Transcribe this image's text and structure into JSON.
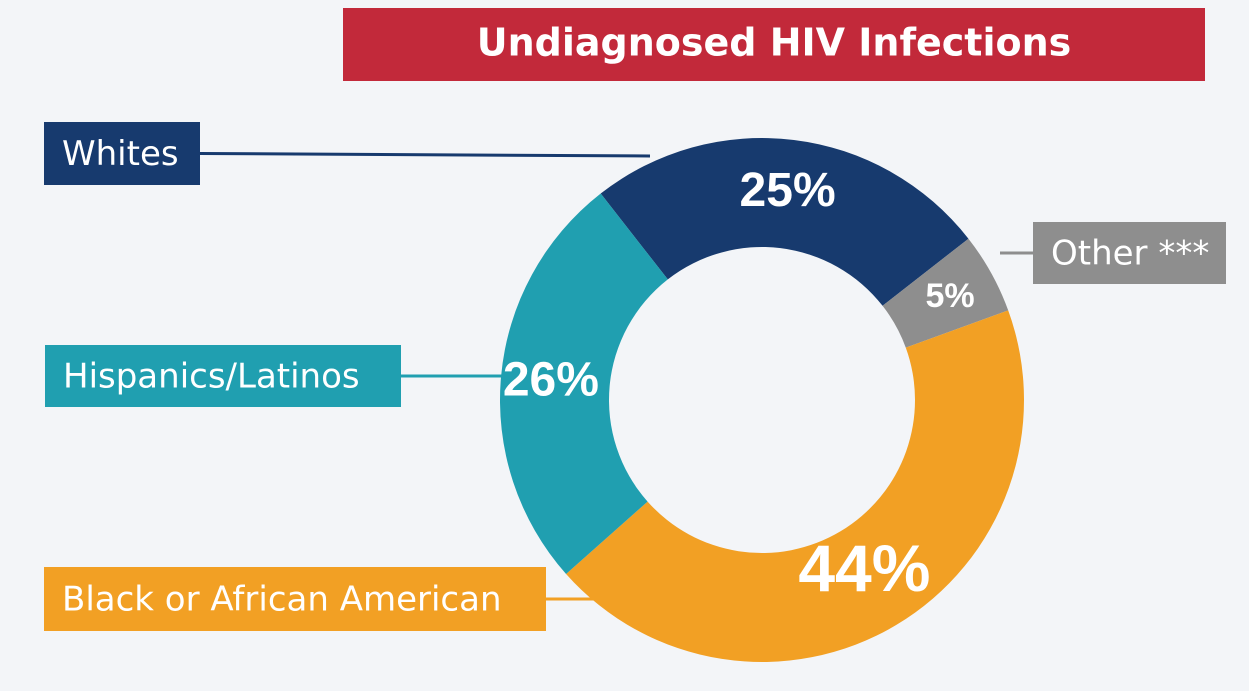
{
  "chart_data": {
    "type": "donut",
    "title": "Undiagnosed HIV Infections",
    "categories": [
      "Whites",
      "Other ***",
      "Black or African American",
      "Hispanics/Latinos"
    ],
    "values": [
      25,
      5,
      44,
      26
    ],
    "value_labels": [
      "25%",
      "5%",
      "44%",
      "26%"
    ],
    "colors": [
      "#173a6e",
      "#8e8e8e",
      "#f2a024",
      "#209fb0"
    ]
  }
}
